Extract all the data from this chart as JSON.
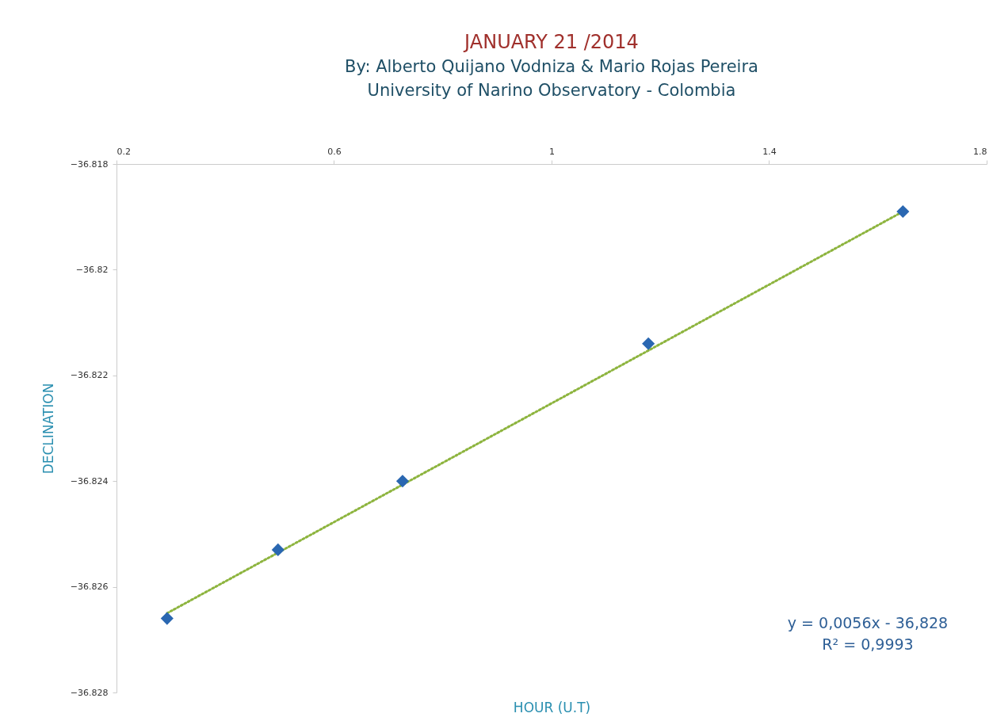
{
  "chart_data": {
    "type": "scatter",
    "title": "JANUARY 21 /2014",
    "subtitle": "By:  Alberto Quijano Vodniza  &  Mario Rojas Pereira\nUniversity of Narino Observatory - Colombia",
    "xlabel": "HOUR (U.T)",
    "ylabel": "DECLINATION",
    "xlim": [
      0.2,
      1.8
    ],
    "xticks": [
      0.2,
      0.6,
      1,
      1.4,
      1.8
    ],
    "ylim": [
      -36.828,
      -36.818
    ],
    "yticks": [
      -36.828,
      -36.826,
      -36.824,
      -36.822,
      -36.82,
      -36.818
    ],
    "annotations": [
      "y = 0,0056x - 36,828",
      "R² = 0,9993"
    ],
    "series": [
      {
        "type": "line",
        "color": "#8db43e",
        "line_style": "dotted",
        "marker": "none",
        "x": [
          0.293,
          1.646
        ],
        "values": [
          -36.8265,
          -36.8189
        ]
      },
      {
        "type": "scatter",
        "color": "#2a67b1",
        "marker": "diamond",
        "x": [
          0.293,
          0.497,
          0.726,
          1.178,
          1.646
        ],
        "values": [
          -36.8266,
          -36.8253,
          -36.824,
          -36.8214,
          -36.8189
        ]
      }
    ]
  }
}
